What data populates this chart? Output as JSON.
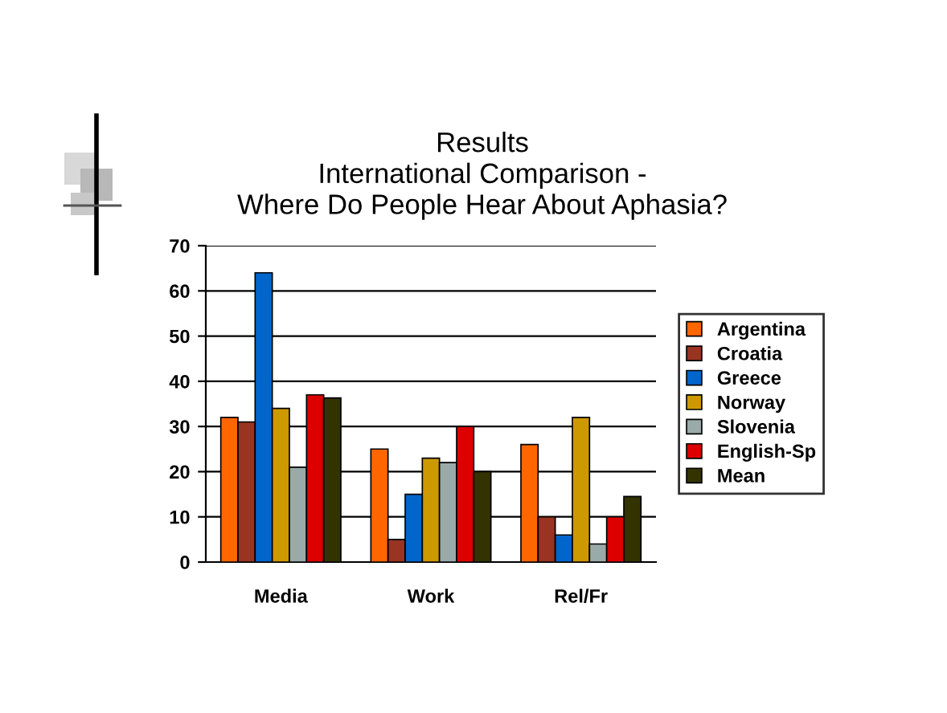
{
  "chart_data": {
    "type": "bar",
    "title": "Results\nInternational Comparison -\nWhere Do People Hear About Aphasia?",
    "categories": [
      "Media",
      "Work",
      "Rel/Fr"
    ],
    "series": [
      {
        "name": "Argentina",
        "color": "#ff6600",
        "values": [
          32,
          25,
          26
        ]
      },
      {
        "name": "Croatia",
        "color": "#993322",
        "values": [
          31,
          5,
          10
        ]
      },
      {
        "name": "Greece",
        "color": "#0066cc",
        "values": [
          64,
          15,
          6
        ]
      },
      {
        "name": "Norway",
        "color": "#cc9900",
        "values": [
          34,
          23,
          32
        ]
      },
      {
        "name": "Slovenia",
        "color": "#99aaa8",
        "values": [
          21,
          22,
          4
        ]
      },
      {
        "name": "English-Sp",
        "color": "#dd0000",
        "values": [
          37,
          30,
          10
        ]
      },
      {
        "name": "Mean",
        "color": "#333300",
        "values": [
          36.3,
          20,
          14.5
        ]
      }
    ],
    "ylim": [
      0,
      70
    ],
    "yticks": [
      0,
      10,
      20,
      30,
      40,
      50,
      60,
      70
    ],
    "grid": "y",
    "legend": "right"
  }
}
